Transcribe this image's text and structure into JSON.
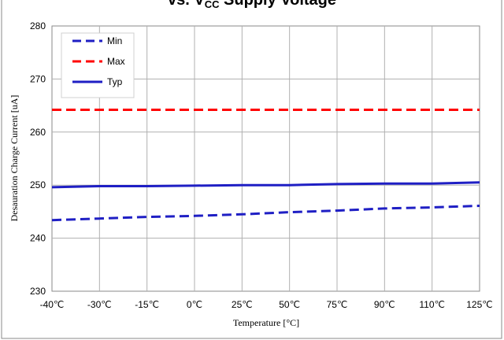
{
  "chart_data": {
    "type": "line",
    "title": {
      "prefix": "vs. V",
      "subscript": "CC",
      "suffix": " Supply Voltage"
    },
    "xlabel": "Temperature [°C]",
    "ylabel": "Desauration Charge Current  [uA]",
    "categories": [
      "-40℃",
      "-30℃",
      "-15℃",
      "0℃",
      "25℃",
      "50℃",
      "75℃",
      "90℃",
      "110℃",
      "125℃"
    ],
    "ylim": [
      230,
      280
    ],
    "yticks": [
      230,
      240,
      250,
      260,
      270,
      280
    ],
    "grid": true,
    "legend_position": "top-left",
    "series": [
      {
        "name": "Min",
        "color": "#1f1fc4",
        "dash": "dashed",
        "values": [
          243.4,
          243.7,
          244.0,
          244.2,
          244.5,
          244.9,
          245.2,
          245.6,
          245.8,
          246.1
        ]
      },
      {
        "name": "Max",
        "color": "#ff0000",
        "dash": "dashed",
        "values": [
          264.2,
          264.2,
          264.2,
          264.2,
          264.2,
          264.2,
          264.2,
          264.2,
          264.2,
          264.2
        ]
      },
      {
        "name": "Typ",
        "color": "#1f1fc4",
        "dash": "solid",
        "values": [
          249.6,
          249.8,
          249.8,
          249.9,
          250.0,
          250.0,
          250.2,
          250.3,
          250.3,
          250.5
        ]
      }
    ]
  }
}
